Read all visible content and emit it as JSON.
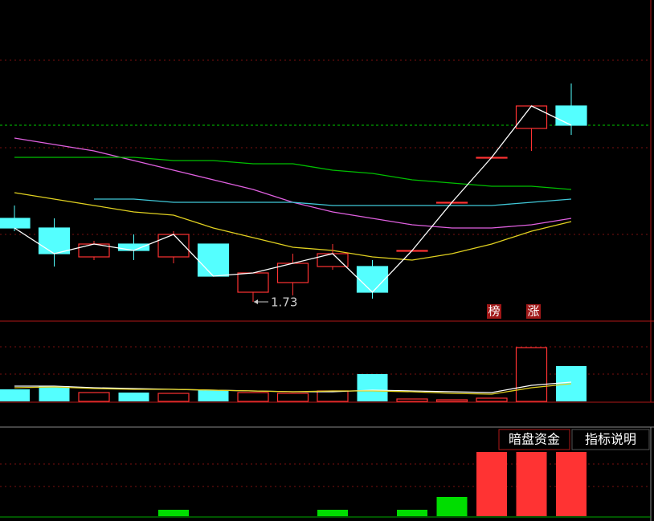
{
  "chart_data": [
    {
      "type": "candlestick",
      "open": [
        1.99,
        1.96,
        1.87,
        1.91,
        1.87,
        1.91,
        1.76,
        1.79,
        1.84,
        1.84,
        1.89,
        2.04,
        2.18,
        2.27,
        2.34
      ],
      "high": [
        2.03,
        1.99,
        1.92,
        1.94,
        1.95,
        1.91,
        1.82,
        1.88,
        1.91,
        1.86,
        1.89,
        2.04,
        2.18,
        2.34,
        2.41
      ],
      "low": [
        1.95,
        1.84,
        1.86,
        1.86,
        1.85,
        1.81,
        1.73,
        1.75,
        1.83,
        1.74,
        1.89,
        2.04,
        2.18,
        2.2,
        2.25
      ],
      "close": [
        1.96,
        1.88,
        1.91,
        1.89,
        1.94,
        1.81,
        1.82,
        1.85,
        1.88,
        1.76,
        1.89,
        2.04,
        2.18,
        2.34,
        2.28
      ],
      "up_color": "#ff3232",
      "down_color": "#54ffff",
      "close_line_color": "#ffffff",
      "ylim": [
        1.675,
        2.67
      ],
      "series": [
        {
          "color": "#e060e0",
          "values": [
            2.24,
            2.22,
            2.2,
            2.17,
            2.14,
            2.11,
            2.08,
            2.04,
            2.01,
            1.99,
            1.97,
            1.96,
            1.96,
            1.97,
            1.99
          ]
        },
        {
          "color": "#00c000",
          "values": [
            2.18,
            2.18,
            2.18,
            2.18,
            2.17,
            2.17,
            2.16,
            2.16,
            2.14,
            2.13,
            2.11,
            2.1,
            2.09,
            2.09,
            2.08
          ]
        },
        {
          "color": "#40c8d8",
          "values": [
            null,
            null,
            2.05,
            2.05,
            2.04,
            2.04,
            2.04,
            2.04,
            2.03,
            2.03,
            2.03,
            2.03,
            2.03,
            2.04,
            2.05
          ]
        },
        {
          "color": "#e0d020",
          "values": [
            2.07,
            2.05,
            2.03,
            2.01,
            2.0,
            1.96,
            1.93,
            1.9,
            1.89,
            1.87,
            1.86,
            1.88,
            1.91,
            1.95,
            1.98
          ]
        }
      ],
      "ref_line": 2.28,
      "ref_color": "#00cc00",
      "low_label": "1.73",
      "annotations": [
        "榜",
        "涨"
      ]
    },
    {
      "type": "bar",
      "values": [
        15,
        19,
        11,
        11,
        10,
        14,
        11,
        10,
        13,
        34,
        3,
        2,
        4,
        67,
        44
      ],
      "colors": [
        "#54ffff",
        "#54ffff",
        "#ff3232",
        "#54ffff",
        "#ff3232",
        "#54ffff",
        "#ff3232",
        "#ff3232",
        "#ff3232",
        "#54ffff",
        "#ff3232",
        "#ff3232",
        "#ff3232",
        "#ff3232",
        "#54ffff"
      ],
      "hollow_color": "#ff3232",
      "ylim": [
        0,
        100
      ],
      "series": [
        {
          "color": "#ffffff",
          "values": [
            19,
            19,
            17,
            16,
            15,
            14,
            13,
            12,
            12,
            14,
            13,
            12,
            11,
            20,
            24
          ]
        },
        {
          "color": "#e0d020",
          "values": [
            17,
            18,
            16,
            15,
            15,
            14,
            13,
            12,
            13,
            13,
            12,
            10,
            9,
            17,
            22
          ]
        }
      ]
    },
    {
      "type": "bar",
      "values": [
        0,
        0,
        0,
        0,
        8,
        0,
        0,
        0,
        8,
        0,
        8,
        24,
        80,
        80,
        80
      ],
      "colors": [
        "#00dd00",
        "#00dd00",
        "#00dd00",
        "#00dd00",
        "#00dd00",
        "#00dd00",
        "#00dd00",
        "#00dd00",
        "#00dd00",
        "#00dd00",
        "#00dd00",
        "#00dd00",
        "#ff3333",
        "#ff3333",
        "#ff3333"
      ],
      "ylim": [
        0,
        110
      ]
    }
  ],
  "buttons": [
    "暗盘资金",
    "指标说明"
  ]
}
